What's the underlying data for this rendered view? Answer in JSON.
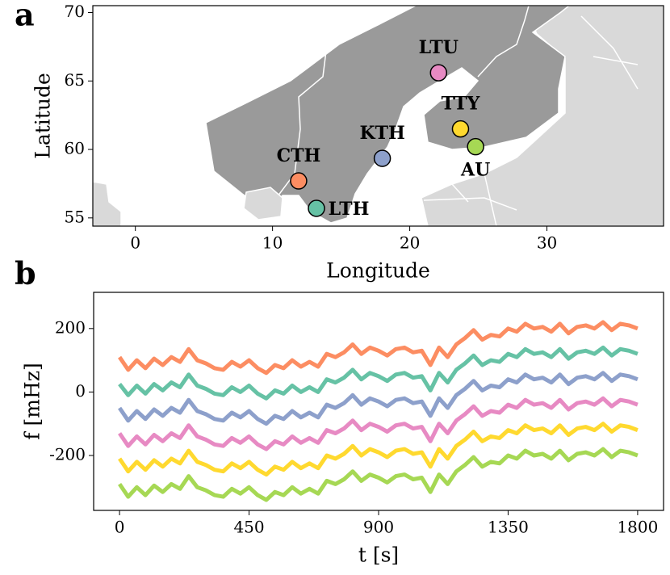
{
  "chart_data": [
    {
      "type": "scatter",
      "panel_label": "a",
      "xlabel": "Longitude",
      "ylabel": "Latitude",
      "xlim": [
        -3.1,
        38.5
      ],
      "xticks": [
        0,
        10,
        20,
        30
      ],
      "ylim": [
        54.4,
        70.5
      ],
      "yticks": [
        55,
        60,
        65,
        70
      ],
      "labels": [
        "LTU",
        "TTY",
        "AU",
        "KTH",
        "CTH",
        "LTH"
      ],
      "x": [
        22.1,
        23.7,
        24.8,
        18.0,
        11.9,
        13.2
      ],
      "y": [
        65.6,
        61.5,
        60.2,
        59.35,
        57.7,
        55.7
      ],
      "colors": [
        "#e78ac3",
        "#ffd92f",
        "#a6d854",
        "#8da0cb",
        "#fc8d62",
        "#66c2a5"
      ]
    },
    {
      "type": "line",
      "panel_label": "b",
      "xlabel": "t [s]",
      "ylabel": "f [mHz]",
      "xlim": [
        -90,
        1890
      ],
      "xticks": [
        0,
        450,
        900,
        1350,
        1800
      ],
      "ylim": [
        -373,
        314
      ],
      "yticks": [
        -200,
        0,
        200
      ],
      "x": [
        0,
        30,
        60,
        90,
        120,
        150,
        180,
        210,
        240,
        270,
        300,
        330,
        360,
        390,
        420,
        450,
        480,
        510,
        540,
        570,
        600,
        630,
        660,
        690,
        720,
        750,
        780,
        810,
        840,
        870,
        900,
        930,
        960,
        990,
        1020,
        1050,
        1080,
        1110,
        1140,
        1170,
        1200,
        1230,
        1260,
        1290,
        1320,
        1350,
        1380,
        1410,
        1440,
        1470,
        1500,
        1530,
        1560,
        1590,
        1620,
        1650,
        1680,
        1710,
        1740,
        1770,
        1800
      ],
      "series": [
        {
          "color": "#fc8d62",
          "values": [
            110,
            70,
            100,
            75,
            105,
            85,
            110,
            95,
            135,
            100,
            90,
            75,
            70,
            95,
            80,
            100,
            75,
            60,
            85,
            75,
            100,
            80,
            95,
            80,
            120,
            110,
            125,
            150,
            120,
            140,
            130,
            115,
            135,
            140,
            125,
            130,
            85,
            140,
            110,
            150,
            170,
            195,
            165,
            180,
            175,
            200,
            190,
            215,
            200,
            205,
            190,
            215,
            185,
            205,
            210,
            200,
            220,
            195,
            215,
            210,
            200
          ]
        },
        {
          "color": "#66c2a5",
          "values": [
            25,
            -10,
            20,
            -5,
            25,
            5,
            30,
            15,
            55,
            20,
            10,
            -5,
            -10,
            15,
            0,
            20,
            -5,
            -20,
            5,
            -5,
            20,
            0,
            15,
            0,
            40,
            30,
            45,
            70,
            40,
            60,
            50,
            35,
            55,
            60,
            45,
            50,
            5,
            60,
            30,
            70,
            90,
            115,
            85,
            100,
            95,
            120,
            110,
            135,
            120,
            125,
            110,
            135,
            105,
            125,
            130,
            120,
            140,
            115,
            135,
            130,
            120
          ]
        },
        {
          "color": "#8da0cb",
          "values": [
            -50,
            -90,
            -60,
            -85,
            -55,
            -75,
            -50,
            -65,
            -25,
            -60,
            -70,
            -85,
            -90,
            -65,
            -80,
            -60,
            -85,
            -100,
            -75,
            -85,
            -60,
            -80,
            -65,
            -80,
            -40,
            -50,
            -35,
            -10,
            -40,
            -20,
            -30,
            -45,
            -25,
            -20,
            -35,
            -30,
            -75,
            -20,
            -50,
            -10,
            10,
            35,
            5,
            20,
            15,
            40,
            30,
            55,
            40,
            45,
            30,
            55,
            25,
            45,
            50,
            40,
            60,
            35,
            55,
            50,
            40
          ]
        },
        {
          "color": "#e78ac3",
          "values": [
            -130,
            -170,
            -140,
            -165,
            -135,
            -155,
            -130,
            -145,
            -105,
            -140,
            -150,
            -165,
            -170,
            -145,
            -160,
            -140,
            -165,
            -180,
            -155,
            -165,
            -140,
            -160,
            -145,
            -160,
            -120,
            -130,
            -115,
            -90,
            -120,
            -100,
            -110,
            -125,
            -105,
            -100,
            -115,
            -110,
            -155,
            -100,
            -130,
            -90,
            -70,
            -45,
            -75,
            -60,
            -65,
            -40,
            -50,
            -25,
            -40,
            -35,
            -50,
            -25,
            -55,
            -35,
            -30,
            -40,
            -20,
            -45,
            -25,
            -30,
            -40
          ]
        },
        {
          "color": "#ffd92f",
          "values": [
            -210,
            -250,
            -220,
            -245,
            -215,
            -235,
            -210,
            -225,
            -185,
            -220,
            -230,
            -245,
            -250,
            -225,
            -240,
            -220,
            -245,
            -260,
            -235,
            -245,
            -220,
            -240,
            -225,
            -240,
            -200,
            -210,
            -195,
            -170,
            -200,
            -180,
            -190,
            -205,
            -185,
            -180,
            -195,
            -190,
            -235,
            -180,
            -210,
            -170,
            -150,
            -125,
            -155,
            -140,
            -145,
            -120,
            -130,
            -105,
            -120,
            -115,
            -130,
            -105,
            -135,
            -115,
            -110,
            -120,
            -100,
            -125,
            -105,
            -110,
            -120
          ]
        },
        {
          "color": "#a6d854",
          "values": [
            -290,
            -330,
            -300,
            -325,
            -295,
            -315,
            -290,
            -305,
            -265,
            -300,
            -310,
            -325,
            -330,
            -305,
            -320,
            -300,
            -325,
            -340,
            -315,
            -325,
            -300,
            -320,
            -305,
            -320,
            -280,
            -290,
            -275,
            -250,
            -280,
            -260,
            -270,
            -285,
            -265,
            -260,
            -275,
            -270,
            -315,
            -260,
            -290,
            -250,
            -230,
            -205,
            -235,
            -220,
            -225,
            -200,
            -210,
            -185,
            -200,
            -195,
            -210,
            -185,
            -215,
            -195,
            -190,
            -200,
            -180,
            -205,
            -185,
            -190,
            -200
          ]
        }
      ]
    }
  ]
}
